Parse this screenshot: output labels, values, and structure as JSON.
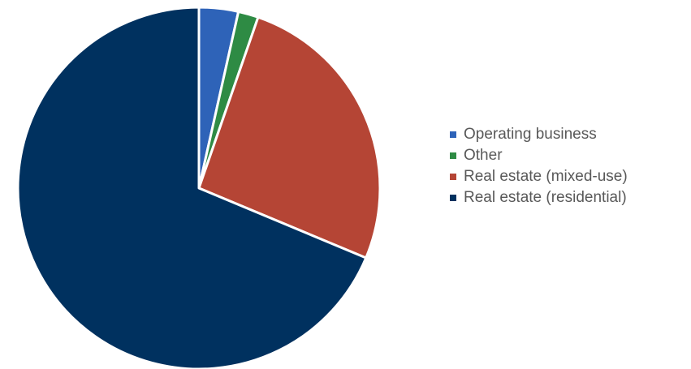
{
  "chart_data": {
    "type": "pie",
    "title": "",
    "start_angle": "12 o'clock",
    "direction": "clockwise",
    "legend_position": "right",
    "slices": [
      {
        "label": "Operating business",
        "value": 3.5,
        "color": "#2E63B8"
      },
      {
        "label": "Other",
        "value": 1.8,
        "color": "#2E8B44"
      },
      {
        "label": "Real estate (mixed-use)",
        "value": 26.0,
        "color": "#B54535"
      },
      {
        "label": "Real estate (residential)",
        "value": 68.7,
        "color": "#00315F"
      }
    ]
  }
}
